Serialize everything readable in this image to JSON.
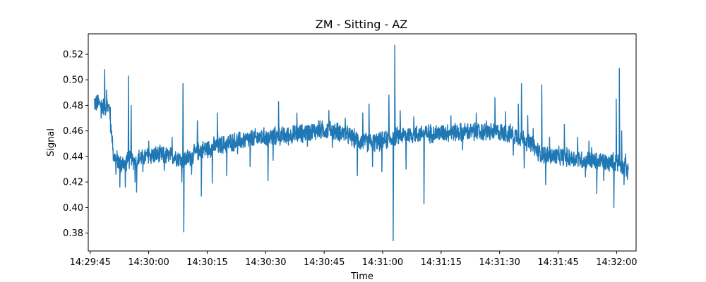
{
  "chart_data": {
    "type": "line",
    "title": "ZM - Sitting - AZ",
    "xlabel": "Time",
    "ylabel": "Signal",
    "x_tick_labels": [
      "14:29:45",
      "14:30:00",
      "14:30:15",
      "14:30:30",
      "14:30:45",
      "14:31:00",
      "14:31:15",
      "14:31:30",
      "14:31:45",
      "14:32:00"
    ],
    "x_tick_seconds": [
      0,
      15,
      30,
      45,
      60,
      75,
      90,
      105,
      120,
      135
    ],
    "y_ticks": [
      0.38,
      0.4,
      0.42,
      0.44,
      0.46,
      0.48,
      0.5,
      0.52
    ],
    "y_tick_labels": [
      "0.38",
      "0.40",
      "0.42",
      "0.44",
      "0.46",
      "0.48",
      "0.50",
      "0.52"
    ],
    "xlim": [
      "14:29:44.5",
      "14:32:05"
    ],
    "ylim": [
      0.366,
      0.536
    ],
    "grid": false,
    "legend": "none",
    "series_color": "#1f77b4",
    "series": [
      {
        "x_start": "14:29:46",
        "x_end": "14:32:03",
        "baseline": [
          [
            0,
            0.483
          ],
          [
            0.5,
            0.481
          ],
          [
            1,
            0.482
          ],
          [
            2,
            0.48
          ],
          [
            3,
            0.479
          ],
          [
            4,
            0.478
          ],
          [
            5,
            0.44
          ],
          [
            6,
            0.437
          ],
          [
            7,
            0.433
          ],
          [
            8,
            0.436
          ],
          [
            9,
            0.437
          ],
          [
            10,
            0.437
          ],
          [
            11,
            0.438
          ],
          [
            13,
            0.44
          ],
          [
            15,
            0.441
          ],
          [
            17,
            0.441
          ],
          [
            19,
            0.44
          ],
          [
            21,
            0.44
          ],
          [
            22,
            0.438
          ],
          [
            23,
            0.437
          ],
          [
            25,
            0.44
          ],
          [
            27,
            0.445
          ],
          [
            29,
            0.446
          ],
          [
            31,
            0.448
          ],
          [
            33,
            0.449
          ],
          [
            35,
            0.451
          ],
          [
            37,
            0.452
          ],
          [
            39,
            0.453
          ],
          [
            41,
            0.454
          ],
          [
            43,
            0.455
          ],
          [
            45,
            0.455
          ],
          [
            47,
            0.456
          ],
          [
            49,
            0.456
          ],
          [
            51,
            0.457
          ],
          [
            53,
            0.458
          ],
          [
            55,
            0.459
          ],
          [
            57,
            0.46
          ],
          [
            59,
            0.461
          ],
          [
            61,
            0.46
          ],
          [
            63,
            0.459
          ],
          [
            64,
            0.458
          ],
          [
            66,
            0.455
          ],
          [
            68,
            0.452
          ],
          [
            70,
            0.451
          ],
          [
            72,
            0.451
          ],
          [
            74,
            0.452
          ],
          [
            76,
            0.454
          ],
          [
            78,
            0.456
          ],
          [
            80,
            0.457
          ],
          [
            82,
            0.457
          ],
          [
            84,
            0.458
          ],
          [
            86,
            0.458
          ],
          [
            88,
            0.458
          ],
          [
            90,
            0.459
          ],
          [
            92,
            0.459
          ],
          [
            94,
            0.459
          ],
          [
            96,
            0.459
          ],
          [
            98,
            0.459
          ],
          [
            100,
            0.459
          ],
          [
            102,
            0.459
          ],
          [
            104,
            0.459
          ],
          [
            106,
            0.458
          ],
          [
            108,
            0.457
          ],
          [
            110,
            0.454
          ],
          [
            112,
            0.45
          ],
          [
            114,
            0.443
          ],
          [
            116,
            0.441
          ],
          [
            118,
            0.44
          ],
          [
            120,
            0.44
          ],
          [
            122,
            0.439
          ],
          [
            124,
            0.438
          ],
          [
            126,
            0.437
          ],
          [
            128,
            0.436
          ],
          [
            130,
            0.436
          ],
          [
            132,
            0.435
          ],
          [
            134,
            0.436
          ],
          [
            135,
            0.434
          ],
          [
            136,
            0.431
          ],
          [
            137,
            0.432
          ]
        ],
        "spikes": [
          [
            2.7,
            0.508
          ],
          [
            1.8,
            0.47
          ],
          [
            3.2,
            0.492
          ],
          [
            4.2,
            0.459
          ],
          [
            4.8,
            0.445
          ],
          [
            5.6,
            0.426
          ],
          [
            6.6,
            0.416
          ],
          [
            8.8,
            0.503
          ],
          [
            8.0,
            0.416
          ],
          [
            9.5,
            0.48
          ],
          [
            10.5,
            0.42
          ],
          [
            10.9,
            0.412
          ],
          [
            12.5,
            0.428
          ],
          [
            14.0,
            0.452
          ],
          [
            18.0,
            0.429
          ],
          [
            20.0,
            0.455
          ],
          [
            22.5,
            0.42
          ],
          [
            22.8,
            0.497
          ],
          [
            23.0,
            0.381
          ],
          [
            25.0,
            0.426
          ],
          [
            26.5,
            0.468
          ],
          [
            27.5,
            0.409
          ],
          [
            30.3,
            0.419
          ],
          [
            31.6,
            0.474
          ],
          [
            34.0,
            0.425
          ],
          [
            36.8,
            0.442
          ],
          [
            40.0,
            0.432
          ],
          [
            43.8,
            0.456
          ],
          [
            44.6,
            0.421
          ],
          [
            45.9,
            0.437
          ],
          [
            47.3,
            0.483
          ],
          [
            49.6,
            0.452
          ],
          [
            52.0,
            0.474
          ],
          [
            54.7,
            0.448
          ],
          [
            57.6,
            0.468
          ],
          [
            60.2,
            0.476
          ],
          [
            61.1,
            0.447
          ],
          [
            64.4,
            0.47
          ],
          [
            67.5,
            0.425
          ],
          [
            68.9,
            0.474
          ],
          [
            70.5,
            0.481
          ],
          [
            71.4,
            0.432
          ],
          [
            73.8,
            0.428
          ],
          [
            75.6,
            0.488
          ],
          [
            76.7,
            0.374
          ],
          [
            77.1,
            0.527
          ],
          [
            78.5,
            0.476
          ],
          [
            80.0,
            0.43
          ],
          [
            82.0,
            0.471
          ],
          [
            84.6,
            0.403
          ],
          [
            85.5,
            0.455
          ],
          [
            89.0,
            0.455
          ],
          [
            91.5,
            0.472
          ],
          [
            94.5,
            0.445
          ],
          [
            95.2,
            0.463
          ],
          [
            98.0,
            0.474
          ],
          [
            100.6,
            0.468
          ],
          [
            102.8,
            0.486
          ],
          [
            105.5,
            0.475
          ],
          [
            107.5,
            0.441
          ],
          [
            108.8,
            0.481
          ],
          [
            109.6,
            0.497
          ],
          [
            110.3,
            0.431
          ],
          [
            111.2,
            0.472
          ],
          [
            112.6,
            0.462
          ],
          [
            114.8,
            0.496
          ],
          [
            115.8,
            0.418
          ],
          [
            116.8,
            0.455
          ],
          [
            118.2,
            0.435
          ],
          [
            120.6,
            0.465
          ],
          [
            121.7,
            0.436
          ],
          [
            124.0,
            0.455
          ],
          [
            126.0,
            0.424
          ],
          [
            126.9,
            0.452
          ],
          [
            127.6,
            0.447
          ],
          [
            128.9,
            0.411
          ],
          [
            129.9,
            0.44
          ],
          [
            130.7,
            0.421
          ],
          [
            131.8,
            0.43
          ],
          [
            133.3,
            0.4
          ],
          [
            133.9,
            0.485
          ],
          [
            134.7,
            0.509
          ],
          [
            135.3,
            0.46
          ],
          [
            135.9,
            0.418
          ],
          [
            136.3,
            0.442
          ],
          [
            136.8,
            0.422
          ]
        ],
        "noise_amplitude": 0.007
      }
    ]
  }
}
